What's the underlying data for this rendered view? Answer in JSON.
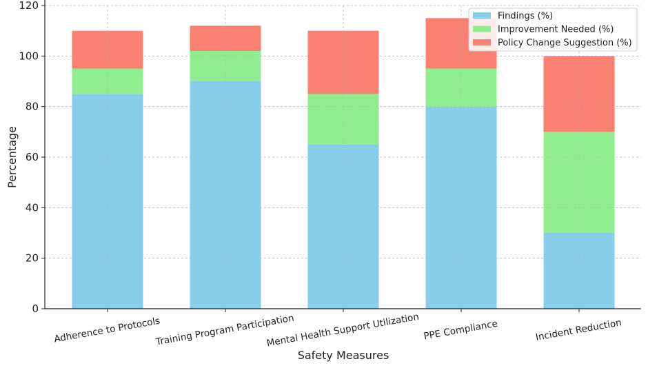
{
  "chart_data": {
    "type": "bar",
    "stacked": true,
    "title": "",
    "xlabel": "Safety Measures",
    "ylabel": "Percentage",
    "categories": [
      "Adherence to Protocols",
      "Training Program Participation",
      "Mental Health Support Utilization",
      "PPE Compliance",
      "Incident Reduction"
    ],
    "series": [
      {
        "name": "Findings (%)",
        "values": [
          85,
          90,
          65,
          80,
          30
        ],
        "color": "#87ceeb"
      },
      {
        "name": "Improvement Needed (%)",
        "values": [
          10,
          12,
          20,
          15,
          40
        ],
        "color": "#90ee90"
      },
      {
        "name": "Policy Change Suggestion (%)",
        "values": [
          15,
          10,
          25,
          20,
          30
        ],
        "color": "#fa8072"
      }
    ],
    "ylim": [
      0,
      120
    ],
    "yticks": [
      "0",
      "20",
      "40",
      "60",
      "80",
      "100",
      "120"
    ],
    "grid": true,
    "legend_position": "top-right"
  }
}
